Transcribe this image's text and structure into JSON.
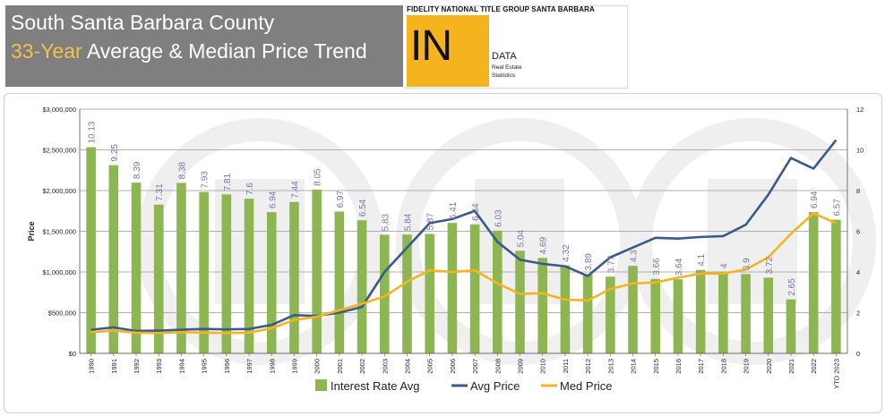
{
  "header": {
    "title_line1": "South Santa Barbara County",
    "title_line2_highlight": "33-Year",
    "title_line2_rest": " Average & Median Price Trend"
  },
  "brand": {
    "name": "FIDELITY NATIONAL TITLE GROUP SANTA BARBARA",
    "logo_text": "IN",
    "logo_word": "DATA",
    "sub_line1": "Real Estate",
    "sub_line2": "Statistics",
    "accent": "#f5b41e"
  },
  "chart_data": {
    "type": "bar+line",
    "title": "",
    "ylabel": "Price",
    "ylim": [
      0,
      3000000
    ],
    "y2lim": [
      0,
      12
    ],
    "y_ticks": [
      "$0",
      "$500,000",
      "$1,000,000",
      "$1,500,000",
      "$2,000,000",
      "$2,500,000",
      "$3,000,000"
    ],
    "y2_ticks": [
      "0",
      "2",
      "4",
      "6",
      "8",
      "10",
      "12"
    ],
    "categories": [
      "1990",
      "1991",
      "1992",
      "1993",
      "1994",
      "1995",
      "1996",
      "1997",
      "1998",
      "1999",
      "2000",
      "2001",
      "2002",
      "2003",
      "2004",
      "2005",
      "2006",
      "2007",
      "2008",
      "2009",
      "2010",
      "2011",
      "2012",
      "2013",
      "2014",
      "2015",
      "2016",
      "2017",
      "2018",
      "2019",
      "2020",
      "2021",
      "2022",
      "YTD 2023"
    ],
    "series": [
      {
        "name": "Interest Rate Avg",
        "type": "bar",
        "axis": "right",
        "color": "#8db653",
        "values": [
          10.13,
          9.25,
          8.39,
          7.31,
          8.38,
          7.93,
          7.81,
          7.6,
          6.94,
          7.44,
          8.05,
          6.97,
          6.54,
          5.83,
          5.84,
          5.87,
          6.41,
          6.34,
          6.03,
          5.04,
          4.69,
          4.32,
          3.89,
          3.77,
          4.3,
          3.66,
          3.64,
          4.1,
          4.0,
          3.9,
          3.72,
          2.65,
          6.94,
          6.57
        ],
        "labels": [
          "10.13",
          "9.25",
          "8.39",
          "7.31",
          "8.38",
          "7.93",
          "7.81",
          "7.6",
          "6.94",
          "7.44",
          "8.05",
          "6.97",
          "6.54",
          "5.83",
          "5.84",
          "5.87",
          "6.41",
          "6.34",
          "6.03",
          "5.04",
          "4.69",
          "4.32",
          "3.89",
          "3.77",
          "4.3",
          "3.66",
          "3.64",
          "4.1",
          "4",
          "3.9",
          "3.72",
          "2.65",
          "6.94",
          "6.57"
        ]
      },
      {
        "name": "Avg Price",
        "type": "line",
        "axis": "left",
        "color": "#3a5a8c",
        "values": [
          290000,
          320000,
          275000,
          280000,
          290000,
          300000,
          295000,
          300000,
          350000,
          470000,
          460000,
          500000,
          570000,
          1000000,
          1300000,
          1600000,
          1650000,
          1750000,
          1370000,
          1150000,
          1100000,
          1070000,
          950000,
          1180000,
          1300000,
          1420000,
          1410000,
          1430000,
          1440000,
          1580000,
          1950000,
          2400000,
          2270000,
          2620000
        ]
      },
      {
        "name": "Med Price",
        "type": "line",
        "axis": "left",
        "color": "#f5b41e",
        "values": [
          260000,
          280000,
          255000,
          250000,
          260000,
          255000,
          250000,
          255000,
          310000,
          410000,
          450000,
          530000,
          610000,
          700000,
          880000,
          1020000,
          1000000,
          1020000,
          860000,
          730000,
          740000,
          660000,
          650000,
          790000,
          860000,
          870000,
          930000,
          980000,
          980000,
          1030000,
          1180000,
          1470000,
          1720000,
          1600000
        ]
      }
    ],
    "legend_position": "bottom",
    "grid": true
  }
}
